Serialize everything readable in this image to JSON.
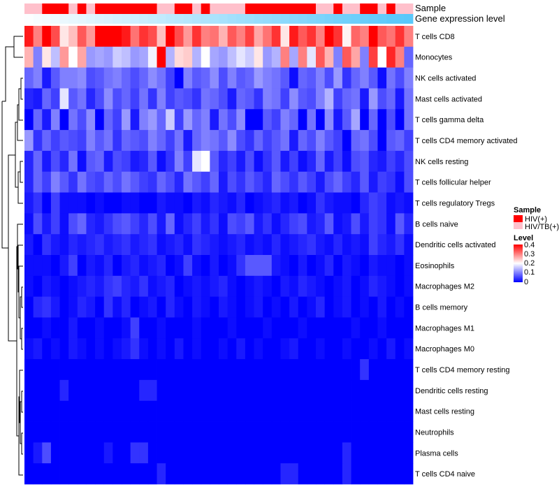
{
  "chart_data": {
    "type": "heatmap",
    "annotations": {
      "sample_title": "Sample",
      "expression_title": "Gene expression level"
    },
    "rows": [
      "T cells CD8",
      "Monocytes",
      "NK cells activated",
      "Mast cells activated",
      "T cells gamma delta",
      "T cells CD4 memory activated",
      "NK cells resting",
      "T cells follicular helper",
      "T cells regulatory  Tregs",
      "B cells naive",
      "Dendritic cells activated",
      "Eosinophils",
      "Macrophages M2",
      "B cells memory",
      "Macrophages M1",
      "Macrophages M0",
      "T cells CD4 memory resting",
      "Dendritic cells resting",
      "Mast cells resting",
      "Neutrophils",
      "Plasma cells",
      "T cells CD4 naive"
    ],
    "n_columns": 44,
    "sample_annotation": [
      "HIV/TB(+)",
      "HIV/TB(+)",
      "HIV(+)",
      "HIV(+)",
      "HIV(+)",
      "HIV/TB(+)",
      "HIV(+)",
      "HIV/TB(+)",
      "HIV(+)",
      "HIV(+)",
      "HIV(+)",
      "HIV(+)",
      "HIV(+)",
      "HIV(+)",
      "HIV(+)",
      "HIV/TB(+)",
      "HIV/TB(+)",
      "HIV(+)",
      "HIV(+)",
      "HIV/TB(+)",
      "HIV(+)",
      "HIV/TB(+)",
      "HIV/TB(+)",
      "HIV/TB(+)",
      "HIV/TB(+)",
      "HIV(+)",
      "HIV(+)",
      "HIV(+)",
      "HIV(+)",
      "HIV(+)",
      "HIV(+)",
      "HIV(+)",
      "HIV(+)",
      "HIV/TB(+)",
      "HIV/TB(+)",
      "HIV(+)",
      "HIV/TB(+)",
      "HIV/TB(+)",
      "HIV(+)",
      "HIV(+)",
      "HIV/TB(+)",
      "HIV(+)",
      "HIV/TB(+)",
      "HIV/TB(+)"
    ],
    "expression_annotation": [
      0.02,
      0.05,
      0.07,
      0.1,
      0.12,
      0.14,
      0.16,
      0.19,
      0.21,
      0.23,
      0.26,
      0.28,
      0.3,
      0.33,
      0.35,
      0.37,
      0.4,
      0.42,
      0.44,
      0.47,
      0.49,
      0.51,
      0.53,
      0.56,
      0.58,
      0.6,
      0.63,
      0.65,
      0.67,
      0.7,
      0.72,
      0.74,
      0.77,
      0.79,
      0.81,
      0.84,
      0.86,
      0.88,
      0.91,
      0.93,
      0.95,
      0.98,
      0.99,
      1.0
    ],
    "values": [
      [
        0.38,
        0.3,
        0.4,
        0.34,
        0.22,
        0.25,
        0.33,
        0.28,
        0.4,
        0.4,
        0.4,
        0.38,
        0.31,
        0.36,
        0.34,
        0.25,
        0.4,
        0.34,
        0.28,
        0.36,
        0.3,
        0.31,
        0.26,
        0.33,
        0.3,
        0.35,
        0.27,
        0.31,
        0.36,
        0.22,
        0.38,
        0.33,
        0.36,
        0.3,
        0.4,
        0.36,
        0.21,
        0.32,
        0.3,
        0.4,
        0.33,
        0.31,
        0.36,
        0.3
      ],
      [
        0.26,
        0.1,
        0.22,
        0.15,
        0.28,
        0.2,
        0.27,
        0.12,
        0.13,
        0.12,
        0.16,
        0.15,
        0.12,
        0.13,
        0.19,
        0.4,
        0.14,
        0.23,
        0.24,
        0.14,
        0.2,
        0.13,
        0.12,
        0.15,
        0.18,
        0.16,
        0.22,
        0.12,
        0.14,
        0.3,
        0.13,
        0.3,
        0.18,
        0.33,
        0.26,
        0.1,
        0.33,
        0.27,
        0.1,
        0.35,
        0.2,
        0.37,
        0.3,
        0.08
      ],
      [
        0.08,
        0.1,
        0.02,
        0.07,
        0.1,
        0.1,
        0.11,
        0.06,
        0.07,
        0.09,
        0.1,
        0.08,
        0.06,
        0.08,
        0.11,
        0.09,
        0.05,
        0.0,
        0.1,
        0.07,
        0.08,
        0.11,
        0.06,
        0.1,
        0.07,
        0.08,
        0.12,
        0.1,
        0.09,
        0.07,
        0.01,
        0.08,
        0.07,
        0.1,
        0.06,
        0.12,
        0.04,
        0.08,
        0.1,
        0.07,
        0.01,
        0.09,
        0.06,
        0.1
      ],
      [
        0.03,
        0.02,
        0.08,
        0.05,
        0.18,
        0.07,
        0.09,
        0.03,
        0.06,
        0.11,
        0.06,
        0.08,
        0.05,
        0.09,
        0.04,
        0.1,
        0.05,
        0.07,
        0.06,
        0.04,
        0.09,
        0.08,
        0.06,
        0.02,
        0.08,
        0.07,
        0.04,
        0.1,
        0.09,
        0.05,
        0.11,
        0.07,
        0.06,
        0.1,
        0.14,
        0.05,
        0.08,
        0.09,
        0.02,
        0.12,
        0.06,
        0.08,
        0.02,
        0.09
      ],
      [
        0.0,
        0.08,
        0.02,
        0.1,
        0.0,
        0.09,
        0.06,
        0.11,
        0.0,
        0.08,
        0.05,
        0.12,
        0.02,
        0.1,
        0.12,
        0.08,
        0.16,
        0.05,
        0.12,
        0.08,
        0.1,
        0.02,
        0.09,
        0.06,
        0.11,
        0.0,
        0.0,
        0.07,
        0.05,
        0.1,
        0.08,
        0.0,
        0.09,
        0.0,
        0.11,
        0.02,
        0.07,
        0.13,
        0.0,
        0.08,
        0.0,
        0.06,
        0.0,
        0.09
      ],
      [
        0.12,
        0.04,
        0.08,
        0.05,
        0.07,
        0.06,
        0.05,
        0.1,
        0.07,
        0.09,
        0.04,
        0.08,
        0.07,
        0.06,
        0.1,
        0.08,
        0.05,
        0.09,
        0.02,
        0.08,
        0.1,
        0.09,
        0.07,
        0.11,
        0.06,
        0.04,
        0.08,
        0.05,
        0.07,
        0.09,
        0.02,
        0.08,
        0.06,
        0.1,
        0.07,
        0.05,
        0.0,
        0.08,
        0.09,
        0.06,
        0.0,
        0.07,
        0.08,
        0.05
      ],
      [
        0.03,
        0.08,
        0.02,
        0.06,
        0.03,
        0.09,
        0.01,
        0.07,
        0.08,
        0.02,
        0.06,
        0.05,
        0.02,
        0.03,
        0.07,
        0.01,
        0.04,
        0.1,
        0.05,
        0.18,
        0.2,
        0.07,
        0.03,
        0.05,
        0.02,
        0.06,
        0.01,
        0.04,
        0.07,
        0.02,
        0.05,
        0.01,
        0.03,
        0.08,
        0.02,
        0.05,
        0.01,
        0.06,
        0.07,
        0.03,
        0.02,
        0.05,
        0.03,
        0.06
      ],
      [
        0.03,
        0.08,
        0.05,
        0.1,
        0.07,
        0.04,
        0.09,
        0.06,
        0.05,
        0.08,
        0.06,
        0.09,
        0.07,
        0.05,
        0.04,
        0.08,
        0.06,
        0.03,
        0.09,
        0.07,
        0.05,
        0.08,
        0.02,
        0.06,
        0.04,
        0.07,
        0.05,
        0.03,
        0.08,
        0.06,
        0.04,
        0.07,
        0.05,
        0.02,
        0.06,
        0.08,
        0.05,
        0.03,
        0.07,
        0.02,
        0.05,
        0.04,
        0.01,
        0.06
      ],
      [
        0.02,
        0.04,
        0.0,
        0.05,
        0.01,
        0.01,
        0.01,
        0.0,
        0.01,
        0.0,
        0.0,
        0.01,
        0.01,
        0.0,
        0.0,
        0.02,
        0.01,
        0.01,
        0.0,
        0.02,
        0.01,
        0.03,
        0.02,
        0.01,
        0.03,
        0.0,
        0.01,
        0.02,
        0.03,
        0.01,
        0.02,
        0.0,
        0.01,
        0.04,
        0.02,
        0.01,
        0.01,
        0.0,
        0.03,
        0.05,
        0.04,
        0.01,
        0.02,
        0.01
      ],
      [
        0.01,
        0.06,
        0.02,
        0.05,
        0.01,
        0.06,
        0.08,
        0.03,
        0.02,
        0.04,
        0.06,
        0.07,
        0.05,
        0.03,
        0.06,
        0.02,
        0.08,
        0.01,
        0.03,
        0.05,
        0.02,
        0.04,
        0.01,
        0.06,
        0.05,
        0.07,
        0.02,
        0.04,
        0.01,
        0.03,
        0.05,
        0.06,
        0.02,
        0.03,
        0.07,
        0.01,
        0.02,
        0.06,
        0.02,
        0.05,
        0.04,
        0.01,
        0.07,
        0.03
      ],
      [
        0.02,
        0.0,
        0.04,
        0.02,
        0.01,
        0.03,
        0.02,
        0.03,
        0.04,
        0.02,
        0.03,
        0.04,
        0.02,
        0.03,
        0.04,
        0.01,
        0.02,
        0.03,
        0.01,
        0.04,
        0.03,
        0.02,
        0.01,
        0.02,
        0.03,
        0.01,
        0.02,
        0.01,
        0.03,
        0.01,
        0.02,
        0.03,
        0.04,
        0.02,
        0.01,
        0.03,
        0.01,
        0.02,
        0.01,
        0.05,
        0.03,
        0.02,
        0.04,
        0.01
      ],
      [
        0.01,
        0.01,
        0.01,
        0.0,
        0.02,
        0.05,
        0.0,
        0.02,
        0.01,
        0.03,
        0.0,
        0.02,
        0.03,
        0.01,
        0.02,
        0.03,
        0.0,
        0.01,
        0.05,
        0.01,
        0.0,
        0.02,
        0.0,
        0.01,
        0.04,
        0.07,
        0.07,
        0.07,
        0.02,
        0.01,
        0.0,
        0.02,
        0.0,
        0.01,
        0.03,
        0.0,
        0.02,
        0.01,
        0.0,
        0.02,
        0.01,
        0.01,
        0.0,
        0.01
      ],
      [
        0.01,
        0.0,
        0.02,
        0.01,
        0.0,
        0.01,
        0.02,
        0.03,
        0.02,
        0.04,
        0.05,
        0.03,
        0.02,
        0.04,
        0.01,
        0.02,
        0.03,
        0.0,
        0.01,
        0.02,
        0.01,
        0.02,
        0.03,
        0.01,
        0.0,
        0.01,
        0.02,
        0.01,
        0.0,
        0.02,
        0.01,
        0.03,
        0.02,
        0.01,
        0.0,
        0.01,
        0.02,
        0.0,
        0.01,
        0.03,
        0.02,
        0.01,
        0.0,
        0.01
      ],
      [
        0.0,
        0.03,
        0.04,
        0.02,
        0.0,
        0.01,
        0.03,
        0.02,
        0.0,
        0.04,
        0.01,
        0.03,
        0.0,
        0.01,
        0.02,
        0.0,
        0.03,
        0.01,
        0.0,
        0.02,
        0.01,
        0.0,
        0.02,
        0.01,
        0.0,
        0.01,
        0.02,
        0.0,
        0.01,
        0.0,
        0.02,
        0.0,
        0.01,
        0.03,
        0.0,
        0.01,
        0.02,
        0.0,
        0.01,
        0.0,
        0.02,
        0.0,
        0.01,
        0.0
      ],
      [
        0.0,
        0.0,
        0.01,
        0.0,
        0.0,
        0.02,
        0.0,
        0.0,
        0.01,
        0.0,
        0.0,
        0.01,
        0.05,
        0.0,
        0.0,
        0.01,
        0.0,
        0.0,
        0.0,
        0.01,
        0.0,
        0.0,
        0.0,
        0.01,
        0.0,
        0.0,
        0.0,
        0.01,
        0.0,
        0.0,
        0.0,
        0.01,
        0.0,
        0.0,
        0.0,
        0.0,
        0.0,
        0.01,
        0.0,
        0.0,
        0.01,
        0.0,
        0.0,
        0.0
      ],
      [
        0.01,
        0.02,
        0.0,
        0.01,
        0.0,
        0.02,
        0.01,
        0.0,
        0.01,
        0.0,
        0.01,
        0.02,
        0.04,
        0.01,
        0.0,
        0.01,
        0.0,
        0.02,
        0.0,
        0.01,
        0.0,
        0.0,
        0.01,
        0.0,
        0.02,
        0.0,
        0.01,
        0.0,
        0.0,
        0.01,
        0.02,
        0.0,
        0.0,
        0.01,
        0.0,
        0.0,
        0.01,
        0.0,
        0.0,
        0.01,
        0.0,
        0.02,
        0.0,
        0.01
      ],
      [
        0.0,
        0.0,
        0.0,
        0.0,
        0.0,
        0.0,
        0.0,
        0.0,
        0.0,
        0.0,
        0.0,
        0.0,
        0.0,
        0.0,
        0.0,
        0.0,
        0.0,
        0.0,
        0.0,
        0.0,
        0.0,
        0.0,
        0.0,
        0.0,
        0.0,
        0.0,
        0.0,
        0.0,
        0.0,
        0.0,
        0.0,
        0.0,
        0.0,
        0.0,
        0.0,
        0.0,
        0.0,
        0.0,
        0.04,
        0.0,
        0.0,
        0.0,
        0.0,
        0.0
      ],
      [
        0.0,
        0.0,
        0.0,
        0.0,
        0.03,
        0.0,
        0.0,
        0.0,
        0.0,
        0.0,
        0.0,
        0.0,
        0.0,
        0.03,
        0.03,
        0.0,
        0.0,
        0.0,
        0.0,
        0.0,
        0.0,
        0.0,
        0.0,
        0.0,
        0.0,
        0.0,
        0.0,
        0.0,
        0.0,
        0.0,
        0.0,
        0.0,
        0.0,
        0.0,
        0.0,
        0.0,
        0.0,
        0.0,
        0.0,
        0.0,
        0.0,
        0.0,
        0.0,
        0.0
      ],
      [
        0.0,
        0.0,
        0.0,
        0.0,
        0.0,
        0.0,
        0.0,
        0.0,
        0.0,
        0.0,
        0.0,
        0.0,
        0.0,
        0.0,
        0.0,
        0.0,
        0.0,
        0.0,
        0.0,
        0.0,
        0.0,
        0.0,
        0.0,
        0.0,
        0.0,
        0.0,
        0.0,
        0.0,
        0.0,
        0.0,
        0.0,
        0.0,
        0.0,
        0.0,
        0.0,
        0.0,
        0.0,
        0.0,
        0.0,
        0.0,
        0.0,
        0.0,
        0.0,
        0.0
      ],
      [
        0.0,
        0.0,
        0.0,
        0.0,
        0.0,
        0.0,
        0.0,
        0.0,
        0.0,
        0.0,
        0.0,
        0.0,
        0.0,
        0.0,
        0.0,
        0.0,
        0.0,
        0.0,
        0.0,
        0.0,
        0.0,
        0.0,
        0.0,
        0.0,
        0.0,
        0.0,
        0.0,
        0.0,
        0.0,
        0.0,
        0.0,
        0.0,
        0.0,
        0.0,
        0.0,
        0.0,
        0.0,
        0.0,
        0.0,
        0.0,
        0.0,
        0.0,
        0.0,
        0.0
      ],
      [
        0.0,
        0.02,
        0.06,
        0.0,
        0.0,
        0.0,
        0.0,
        0.0,
        0.0,
        0.02,
        0.0,
        0.0,
        0.04,
        0.04,
        0.0,
        0.0,
        0.0,
        0.0,
        0.0,
        0.0,
        0.0,
        0.0,
        0.0,
        0.0,
        0.0,
        0.0,
        0.0,
        0.0,
        0.0,
        0.0,
        0.0,
        0.0,
        0.0,
        0.0,
        0.0,
        0.0,
        0.03,
        0.0,
        0.0,
        0.0,
        0.0,
        0.0,
        0.0,
        0.0
      ],
      [
        0.0,
        0.0,
        0.0,
        0.0,
        0.0,
        0.0,
        0.0,
        0.0,
        0.0,
        0.0,
        0.0,
        0.0,
        0.0,
        0.0,
        0.0,
        0.03,
        0.0,
        0.0,
        0.0,
        0.0,
        0.0,
        0.0,
        0.0,
        0.0,
        0.0,
        0.0,
        0.0,
        0.0,
        0.0,
        0.03,
        0.03,
        0.0,
        0.0,
        0.0,
        0.0,
        0.0,
        0.03,
        0.0,
        0.0,
        0.0,
        0.0,
        0.0,
        0.0,
        0.0
      ]
    ],
    "legend": {
      "sample": {
        "title": "Sample",
        "items": [
          {
            "label": "HIV(+)",
            "color": "#ff0000"
          },
          {
            "label": "HIV/TB(+)",
            "color": "#ffc0cb"
          }
        ]
      },
      "level": {
        "title": "Level",
        "ticks": [
          "0.4",
          "0.3",
          "0.2",
          "0.1",
          "0"
        ],
        "range": [
          0,
          0.4
        ],
        "colors": [
          "#0000ff",
          "#ffffff",
          "#ff0000"
        ]
      }
    },
    "expression_colors": [
      "#ffffff",
      "#5ac8fa"
    ],
    "dendrogram": "row-clustering"
  }
}
